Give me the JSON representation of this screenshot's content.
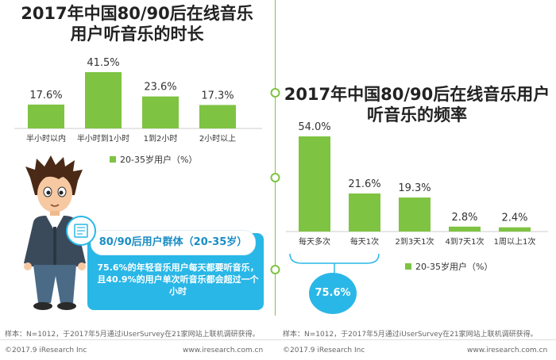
{
  "left_panel": {
    "title_line1": "2017年中国80/90后在线音乐",
    "title_line2": "用户听音乐的时长",
    "callout": {
      "heading": "80/90后用户群体（20-35岁）",
      "text": "75.6%的年轻音乐用户每天都要听音乐，且40.9%的用户单次听音乐都会超过一个小时"
    }
  },
  "right_panel": {
    "title_line1": "2017年中国80/90后在线音乐用户",
    "title_line2": "听音乐的频率",
    "circle_stat": "75.6%"
  },
  "colors": {
    "bar": "#7ec342",
    "accent_blue": "#29b7e7",
    "divider": "#7ec342"
  },
  "chart_data": [
    {
      "type": "bar",
      "title": "2017年中国80/90后在线音乐用户听音乐的时长",
      "categories": [
        "半小时以内",
        "半小时到1小时",
        "1到2小时",
        "2小时以上"
      ],
      "series": [
        {
          "name": "20-35岁用户（%）",
          "values": [
            17.6,
            41.5,
            23.6,
            17.3
          ]
        }
      ],
      "data_labels": [
        "17.6%",
        "41.5%",
        "23.6%",
        "17.3%"
      ],
      "ylim": [
        0,
        45
      ],
      "legend": "bottom"
    },
    {
      "type": "bar",
      "title": "2017年中国80/90后在线音乐用户听音乐的频率",
      "categories": [
        "每天多次",
        "每天1次",
        "2到3天1次",
        "4到7天1次",
        "1周以上1次"
      ],
      "series": [
        {
          "name": "20-35岁用户（%）",
          "values": [
            54.0,
            21.6,
            19.3,
            2.8,
            2.4
          ]
        }
      ],
      "data_labels": [
        "54.0%",
        "21.6%",
        "19.3%",
        "2.8%",
        "2.4%"
      ],
      "ylim": [
        0,
        58
      ],
      "legend": "bottom"
    }
  ],
  "notes": {
    "left": "样本：N=1012，于2017年5月通过iUserSurvey在21家网站上联机调研获得。",
    "right": "样本：N=1012，于2017年5月通过iUserSurvey在21家网站上联机调研获得。"
  },
  "footer": {
    "left_copyright": "©2017.9 iResearch Inc",
    "left_site": "www.iresearch.com.cn",
    "right_copyright": "©2017.9 iResearch Inc",
    "right_site": "www.iresearch.com.cn"
  }
}
